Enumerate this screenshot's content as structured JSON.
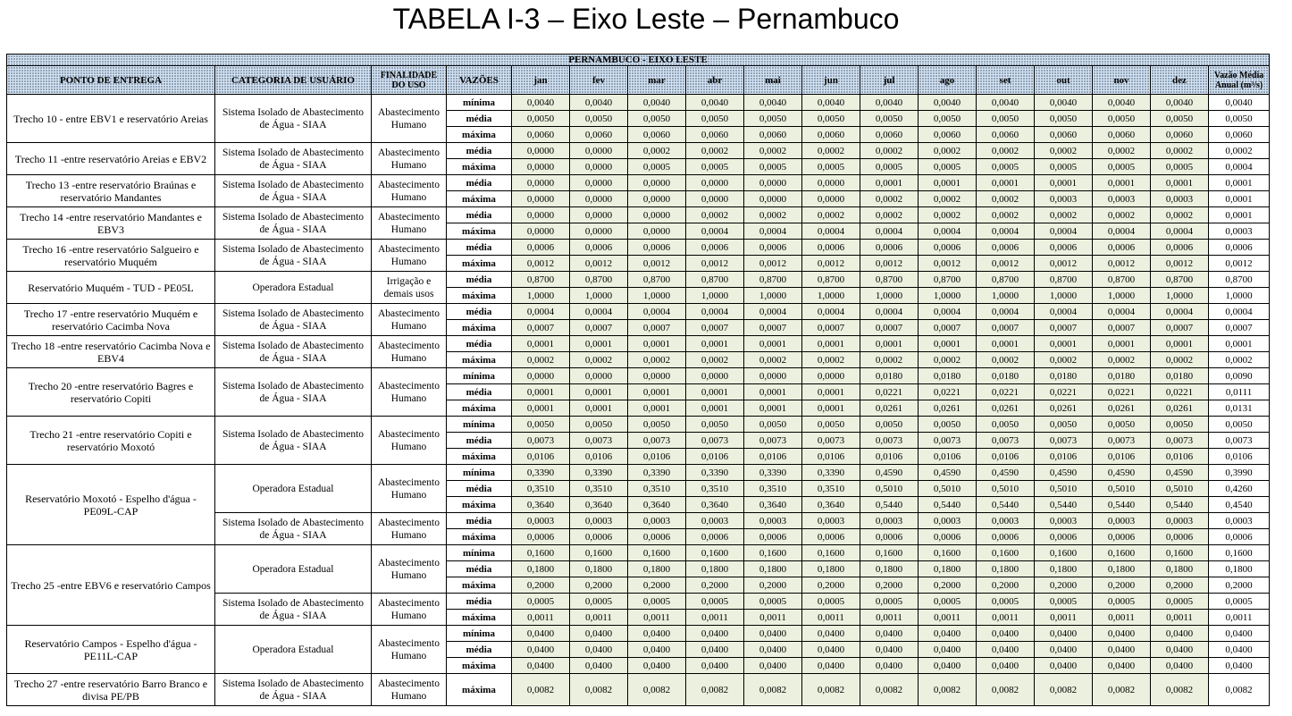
{
  "title": "TABELA I-3 – Eixo Leste – Pernambuco",
  "table": {
    "header_top": "PERNAMBUCO - EIXO LESTE",
    "columns": [
      "PONTO DE ENTREGA",
      "CATEGORIA DE USUÁRIO",
      "FINALIDADE DO USO",
      "VAZÕES",
      "jan",
      "fev",
      "mar",
      "abr",
      "mai",
      "jun",
      "jul",
      "ago",
      "set",
      "out",
      "nov",
      "dez",
      "Vazão Média Anual (m³/s)"
    ],
    "groups": [
      {
        "ponto": "Trecho 10 - entre EBV1 e reservatório Areias",
        "entries": [
          {
            "categoria": "Sistema Isolado de Abastecimento de Água - SIAA",
            "finalidade": "Abastecimento Humano",
            "rows": [
              [
                "mínima",
                "0,0040",
                "0,0040",
                "0,0040",
                "0,0040",
                "0,0040",
                "0,0040",
                "0,0040",
                "0,0040",
                "0,0040",
                "0,0040",
                "0,0040",
                "0,0040",
                "0,0040"
              ],
              [
                "média",
                "0,0050",
                "0,0050",
                "0,0050",
                "0,0050",
                "0,0050",
                "0,0050",
                "0,0050",
                "0,0050",
                "0,0050",
                "0,0050",
                "0,0050",
                "0,0050",
                "0,0050"
              ],
              [
                "máxima",
                "0,0060",
                "0,0060",
                "0,0060",
                "0,0060",
                "0,0060",
                "0,0060",
                "0,0060",
                "0,0060",
                "0,0060",
                "0,0060",
                "0,0060",
                "0,0060",
                "0,0060"
              ]
            ]
          }
        ]
      },
      {
        "ponto": "Trecho 11 -entre reservatório Areias e EBV2",
        "entries": [
          {
            "categoria": "Sistema Isolado de Abastecimento de Água - SIAA",
            "finalidade": "Abastecimento Humano",
            "rows": [
              [
                "média",
                "0,0000",
                "0,0000",
                "0,0002",
                "0,0002",
                "0,0002",
                "0,0002",
                "0,0002",
                "0,0002",
                "0,0002",
                "0,0002",
                "0,0002",
                "0,0002",
                "0,0002"
              ],
              [
                "máxima",
                "0,0000",
                "0,0000",
                "0,0005",
                "0,0005",
                "0,0005",
                "0,0005",
                "0,0005",
                "0,0005",
                "0,0005",
                "0,0005",
                "0,0005",
                "0,0005",
                "0,0004"
              ]
            ]
          }
        ]
      },
      {
        "ponto": "Trecho 13 -entre reservatório Braúnas e reservatório Mandantes",
        "entries": [
          {
            "categoria": "Sistema Isolado de Abastecimento de Água - SIAA",
            "finalidade": "Abastecimento Humano",
            "rows": [
              [
                "média",
                "0,0000",
                "0,0000",
                "0,0000",
                "0,0000",
                "0,0000",
                "0,0000",
                "0,0001",
                "0,0001",
                "0,0001",
                "0,0001",
                "0,0001",
                "0,0001",
                "0,0001"
              ],
              [
                "máxima",
                "0,0000",
                "0,0000",
                "0,0000",
                "0,0000",
                "0,0000",
                "0,0000",
                "0,0002",
                "0,0002",
                "0,0002",
                "0,0003",
                "0,0003",
                "0,0003",
                "0,0001"
              ]
            ]
          }
        ]
      },
      {
        "ponto": "Trecho 14 -entre reservatório Mandantes e EBV3",
        "entries": [
          {
            "categoria": "Sistema Isolado de Abastecimento de Água - SIAA",
            "finalidade": "Abastecimento Humano",
            "rows": [
              [
                "média",
                "0,0000",
                "0,0000",
                "0,0000",
                "0,0002",
                "0,0002",
                "0,0002",
                "0,0002",
                "0,0002",
                "0,0002",
                "0,0002",
                "0,0002",
                "0,0002",
                "0,0001"
              ],
              [
                "máxima",
                "0,0000",
                "0,0000",
                "0,0000",
                "0,0004",
                "0,0004",
                "0,0004",
                "0,0004",
                "0,0004",
                "0,0004",
                "0,0004",
                "0,0004",
                "0,0004",
                "0,0003"
              ]
            ]
          }
        ]
      },
      {
        "ponto": "Trecho 16 -entre reservatório Salgueiro e reservatório Muquém",
        "entries": [
          {
            "categoria": "Sistema Isolado de Abastecimento de Água - SIAA",
            "finalidade": "Abastecimento Humano",
            "rows": [
              [
                "média",
                "0,0006",
                "0,0006",
                "0,0006",
                "0,0006",
                "0,0006",
                "0,0006",
                "0,0006",
                "0,0006",
                "0,0006",
                "0,0006",
                "0,0006",
                "0,0006",
                "0,0006"
              ],
              [
                "máxima",
                "0,0012",
                "0,0012",
                "0,0012",
                "0,0012",
                "0,0012",
                "0,0012",
                "0,0012",
                "0,0012",
                "0,0012",
                "0,0012",
                "0,0012",
                "0,0012",
                "0,0012"
              ]
            ]
          }
        ]
      },
      {
        "ponto": "Reservatório Muquém - TUD - PE05L",
        "entries": [
          {
            "categoria": "Operadora Estadual",
            "finalidade": "Irrigação e demais usos",
            "rows": [
              [
                "média",
                "0,8700",
                "0,8700",
                "0,8700",
                "0,8700",
                "0,8700",
                "0,8700",
                "0,8700",
                "0,8700",
                "0,8700",
                "0,8700",
                "0,8700",
                "0,8700",
                "0,8700"
              ],
              [
                "máxima",
                "1,0000",
                "1,0000",
                "1,0000",
                "1,0000",
                "1,0000",
                "1,0000",
                "1,0000",
                "1,0000",
                "1,0000",
                "1,0000",
                "1,0000",
                "1,0000",
                "1,0000"
              ]
            ]
          }
        ]
      },
      {
        "ponto": "Trecho 17 -entre reservatório Muquém e reservatório Cacimba Nova",
        "entries": [
          {
            "categoria": "Sistema Isolado de Abastecimento de Água - SIAA",
            "finalidade": "Abastecimento Humano",
            "rows": [
              [
                "média",
                "0,0004",
                "0,0004",
                "0,0004",
                "0,0004",
                "0,0004",
                "0,0004",
                "0,0004",
                "0,0004",
                "0,0004",
                "0,0004",
                "0,0004",
                "0,0004",
                "0,0004"
              ],
              [
                "máxima",
                "0,0007",
                "0,0007",
                "0,0007",
                "0,0007",
                "0,0007",
                "0,0007",
                "0,0007",
                "0,0007",
                "0,0007",
                "0,0007",
                "0,0007",
                "0,0007",
                "0,0007"
              ]
            ]
          }
        ]
      },
      {
        "ponto": "Trecho 18 -entre reservatório Cacimba Nova e EBV4",
        "entries": [
          {
            "categoria": "Sistema Isolado de Abastecimento de Água - SIAA",
            "finalidade": "Abastecimento Humano",
            "rows": [
              [
                "média",
                "0,0001",
                "0,0001",
                "0,0001",
                "0,0001",
                "0,0001",
                "0,0001",
                "0,0001",
                "0,0001",
                "0,0001",
                "0,0001",
                "0,0001",
                "0,0001",
                "0,0001"
              ],
              [
                "máxima",
                "0,0002",
                "0,0002",
                "0,0002",
                "0,0002",
                "0,0002",
                "0,0002",
                "0,0002",
                "0,0002",
                "0,0002",
                "0,0002",
                "0,0002",
                "0,0002",
                "0,0002"
              ]
            ]
          }
        ]
      },
      {
        "ponto": "Trecho 20 -entre reservatório Bagres e reservatório Copiti",
        "entries": [
          {
            "categoria": "Sistema Isolado de Abastecimento de Água - SIAA",
            "finalidade": "Abastecimento Humano",
            "rows": [
              [
                "mínima",
                "0,0000",
                "0,0000",
                "0,0000",
                "0,0000",
                "0,0000",
                "0,0000",
                "0,0180",
                "0,0180",
                "0,0180",
                "0,0180",
                "0,0180",
                "0,0180",
                "0,0090"
              ],
              [
                "média",
                "0,0001",
                "0,0001",
                "0,0001",
                "0,0001",
                "0,0001",
                "0,0001",
                "0,0221",
                "0,0221",
                "0,0221",
                "0,0221",
                "0,0221",
                "0,0221",
                "0,0111"
              ],
              [
                "máxima",
                "0,0001",
                "0,0001",
                "0,0001",
                "0,0001",
                "0,0001",
                "0,0001",
                "0,0261",
                "0,0261",
                "0,0261",
                "0,0261",
                "0,0261",
                "0,0261",
                "0,0131"
              ]
            ]
          }
        ]
      },
      {
        "ponto": "Trecho 21 -entre reservatório Copiti e reservatório Moxotó",
        "entries": [
          {
            "categoria": "Sistema Isolado de Abastecimento de Água - SIAA",
            "finalidade": "Abastecimento Humano",
            "rows": [
              [
                "mínima",
                "0,0050",
                "0,0050",
                "0,0050",
                "0,0050",
                "0,0050",
                "0,0050",
                "0,0050",
                "0,0050",
                "0,0050",
                "0,0050",
                "0,0050",
                "0,0050",
                "0,0050"
              ],
              [
                "média",
                "0,0073",
                "0,0073",
                "0,0073",
                "0,0073",
                "0,0073",
                "0,0073",
                "0,0073",
                "0,0073",
                "0,0073",
                "0,0073",
                "0,0073",
                "0,0073",
                "0,0073"
              ],
              [
                "máxima",
                "0,0106",
                "0,0106",
                "0,0106",
                "0,0106",
                "0,0106",
                "0,0106",
                "0,0106",
                "0,0106",
                "0,0106",
                "0,0106",
                "0,0106",
                "0,0106",
                "0,0106"
              ]
            ]
          }
        ]
      },
      {
        "ponto": "Reservatório Moxotó - Espelho d'água - PE09L-CAP",
        "entries": [
          {
            "categoria": "Operadora Estadual",
            "finalidade": "Abastecimento Humano",
            "rows": [
              [
                "mínima",
                "0,3390",
                "0,3390",
                "0,3390",
                "0,3390",
                "0,3390",
                "0,3390",
                "0,4590",
                "0,4590",
                "0,4590",
                "0,4590",
                "0,4590",
                "0,4590",
                "0,3990"
              ],
              [
                "média",
                "0,3510",
                "0,3510",
                "0,3510",
                "0,3510",
                "0,3510",
                "0,3510",
                "0,5010",
                "0,5010",
                "0,5010",
                "0,5010",
                "0,5010",
                "0,5010",
                "0,4260"
              ],
              [
                "máxima",
                "0,3640",
                "0,3640",
                "0,3640",
                "0,3640",
                "0,3640",
                "0,3640",
                "0,5440",
                "0,5440",
                "0,5440",
                "0,5440",
                "0,5440",
                "0,5440",
                "0,4540"
              ]
            ]
          },
          {
            "categoria": "Sistema Isolado de Abastecimento de Água - SIAA",
            "finalidade": "Abastecimento Humano",
            "rows": [
              [
                "média",
                "0,0003",
                "0,0003",
                "0,0003",
                "0,0003",
                "0,0003",
                "0,0003",
                "0,0003",
                "0,0003",
                "0,0003",
                "0,0003",
                "0,0003",
                "0,0003",
                "0,0003"
              ],
              [
                "máxima",
                "0,0006",
                "0,0006",
                "0,0006",
                "0,0006",
                "0,0006",
                "0,0006",
                "0,0006",
                "0,0006",
                "0,0006",
                "0,0006",
                "0,0006",
                "0,0006",
                "0,0006"
              ]
            ]
          }
        ]
      },
      {
        "ponto": "Trecho 25 -entre EBV6 e reservatório Campos",
        "entries": [
          {
            "categoria": "Operadora Estadual",
            "finalidade": "Abastecimento Humano",
            "rows": [
              [
                "mínima",
                "0,1600",
                "0,1600",
                "0,1600",
                "0,1600",
                "0,1600",
                "0,1600",
                "0,1600",
                "0,1600",
                "0,1600",
                "0,1600",
                "0,1600",
                "0,1600",
                "0,1600"
              ],
              [
                "média",
                "0,1800",
                "0,1800",
                "0,1800",
                "0,1800",
                "0,1800",
                "0,1800",
                "0,1800",
                "0,1800",
                "0,1800",
                "0,1800",
                "0,1800",
                "0,1800",
                "0,1800"
              ],
              [
                "máxima",
                "0,2000",
                "0,2000",
                "0,2000",
                "0,2000",
                "0,2000",
                "0,2000",
                "0,2000",
                "0,2000",
                "0,2000",
                "0,2000",
                "0,2000",
                "0,2000",
                "0,2000"
              ]
            ]
          },
          {
            "categoria": "Sistema Isolado de Abastecimento de Água - SIAA",
            "finalidade": "Abastecimento Humano",
            "rows": [
              [
                "média",
                "0,0005",
                "0,0005",
                "0,0005",
                "0,0005",
                "0,0005",
                "0,0005",
                "0,0005",
                "0,0005",
                "0,0005",
                "0,0005",
                "0,0005",
                "0,0005",
                "0,0005"
              ],
              [
                "máxima",
                "0,0011",
                "0,0011",
                "0,0011",
                "0,0011",
                "0,0011",
                "0,0011",
                "0,0011",
                "0,0011",
                "0,0011",
                "0,0011",
                "0,0011",
                "0,0011",
                "0,0011"
              ]
            ]
          }
        ]
      },
      {
        "ponto": "Reservatório Campos - Espelho d'água - PE11L-CAP",
        "entries": [
          {
            "categoria": "Operadora Estadual",
            "finalidade": "Abastecimento Humano",
            "rows": [
              [
                "mínima",
                "0,0400",
                "0,0400",
                "0,0400",
                "0,0400",
                "0,0400",
                "0,0400",
                "0,0400",
                "0,0400",
                "0,0400",
                "0,0400",
                "0,0400",
                "0,0400",
                "0,0400"
              ],
              [
                "média",
                "0,0400",
                "0,0400",
                "0,0400",
                "0,0400",
                "0,0400",
                "0,0400",
                "0,0400",
                "0,0400",
                "0,0400",
                "0,0400",
                "0,0400",
                "0,0400",
                "0,0400"
              ],
              [
                "máxima",
                "0,0400",
                "0,0400",
                "0,0400",
                "0,0400",
                "0,0400",
                "0,0400",
                "0,0400",
                "0,0400",
                "0,0400",
                "0,0400",
                "0,0400",
                "0,0400",
                "0,0400"
              ]
            ]
          }
        ]
      },
      {
        "ponto": "Trecho 27 -entre reservatório Barro Branco e divisa PE/PB",
        "entries": [
          {
            "categoria": "Sistema Isolado de Abastecimento de Água - SIAA",
            "finalidade": "Abastecimento Humano",
            "rows": [
              [
                "máxima",
                "0,0082",
                "0,0082",
                "0,0082",
                "0,0082",
                "0,0082",
                "0,0082",
                "0,0082",
                "0,0082",
                "0,0082",
                "0,0082",
                "0,0082",
                "0,0082",
                "0,0082"
              ]
            ]
          }
        ]
      }
    ]
  }
}
